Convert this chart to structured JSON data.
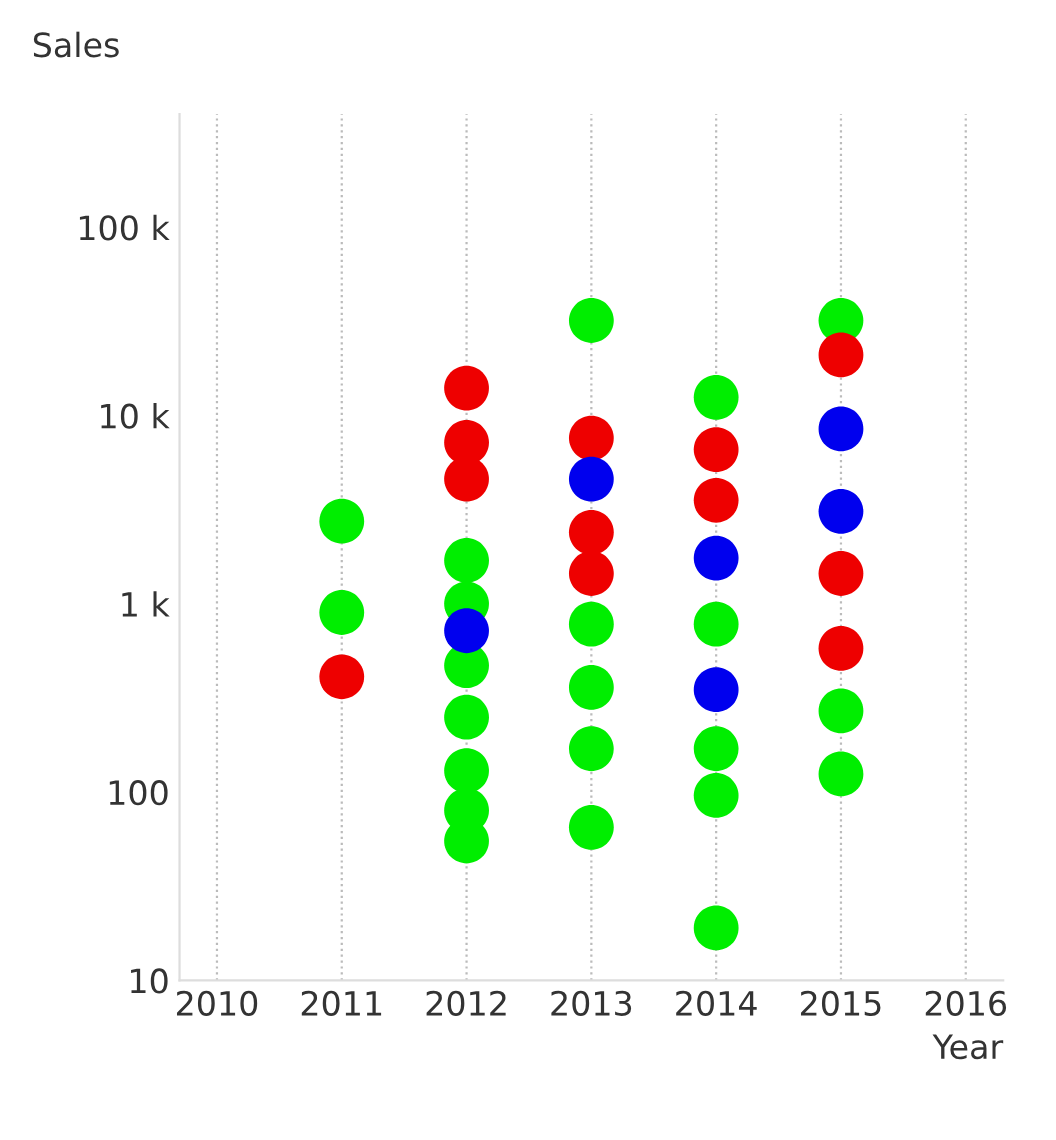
{
  "chart_data": {
    "type": "scatter",
    "xlabel": "Year",
    "ylabel": "Sales",
    "log": "y",
    "grid": "x",
    "marker": "circle",
    "xlim": [
      2009.7,
      2016.3
    ],
    "xticks": [
      2010,
      2011,
      2012,
      2013,
      2014,
      2015,
      2016
    ],
    "ylim": [
      10,
      400000
    ],
    "yticks": [
      10,
      100,
      {
        "value": 1000,
        "label": "1 k"
      },
      {
        "value": 10000,
        "label": "10 k"
      },
      {
        "value": 100000,
        "label": "100 k"
      }
    ],
    "series": [
      {
        "color": "#00ee00",
        "x": [
          2011,
          2011,
          2012,
          2012,
          2012,
          2012,
          2012,
          2012,
          2012,
          2013,
          2013,
          2013,
          2013,
          2013,
          2014,
          2014,
          2014,
          2014,
          2014,
          2015,
          2015,
          2015
        ],
        "values": [
          2750,
          900,
          1700,
          1000,
          470,
          250,
          130,
          80,
          55,
          32000,
          780,
          360,
          170,
          65,
          12500,
          780,
          170,
          96,
          19,
          32000,
          270,
          125
        ]
      },
      {
        "color": "#ee0000",
        "x": [
          2011,
          2012,
          2012,
          2012,
          2013,
          2013,
          2013,
          2014,
          2014,
          2015,
          2015,
          2015
        ],
        "values": [
          410,
          14000,
          7200,
          4600,
          7600,
          2400,
          1450,
          6600,
          3550,
          21000,
          1450,
          580
        ]
      },
      {
        "color": "#0000ee",
        "x": [
          2012,
          2013,
          2014,
          2014,
          2015,
          2015
        ],
        "values": [
          720,
          4600,
          1750,
          350,
          8500,
          3100
        ]
      }
    ]
  }
}
